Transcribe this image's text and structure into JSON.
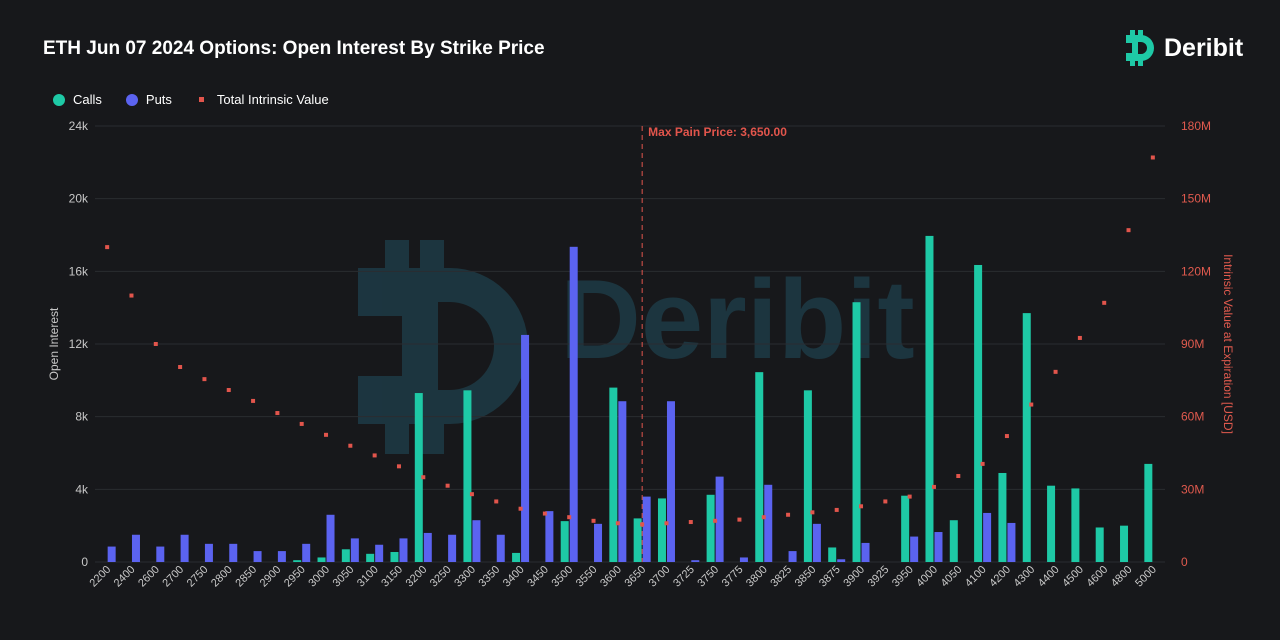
{
  "title": "ETH Jun 07 2024 Options: Open Interest By Strike Price",
  "brand": "Deribit",
  "colors": {
    "calls": "#1ec9a6",
    "puts": "#5b63f0",
    "intrinsic": "#e2554c",
    "grid": "#2a2c30",
    "axis_text": "#c8c8c8",
    "right_axis_text": "#e05a4e",
    "watermark": "#1d3b46"
  },
  "legend": {
    "calls": "Calls",
    "puts": "Puts",
    "intrinsic": "Total Intrinsic Value"
  },
  "chart_data": {
    "type": "bar",
    "xlabel": "",
    "ylabel": "Open Interest",
    "y2label": "Intrinsic Value at Expiration [USD]",
    "ylim": [
      0,
      24000
    ],
    "y2lim": [
      0,
      180000000
    ],
    "y_ticks": [
      "0",
      "4k",
      "8k",
      "12k",
      "16k",
      "20k",
      "24k"
    ],
    "y2_ticks": [
      "0",
      "30M",
      "60M",
      "90M",
      "120M",
      "150M",
      "180M"
    ],
    "grid": true,
    "legend_position": "top-left",
    "annotation": "Max Pain Price: 3,650.00",
    "max_pain_strike": "3650",
    "categories": [
      "2200",
      "2400",
      "2600",
      "2700",
      "2750",
      "2800",
      "2850",
      "2900",
      "2950",
      "3000",
      "3050",
      "3100",
      "3150",
      "3200",
      "3250",
      "3300",
      "3350",
      "3400",
      "3450",
      "3500",
      "3550",
      "3600",
      "3650",
      "3700",
      "3725",
      "3750",
      "3775",
      "3800",
      "3825",
      "3850",
      "3875",
      "3900",
      "3925",
      "3950",
      "4000",
      "4050",
      "4100",
      "4200",
      "4300",
      "4400",
      "4500",
      "4600",
      "4800",
      "5000"
    ],
    "series": [
      {
        "name": "Calls",
        "type": "bar",
        "values": [
          0,
          0,
          0,
          0,
          0,
          0,
          0,
          0,
          100,
          250,
          700,
          450,
          550,
          9300,
          0,
          9450,
          0,
          500,
          0,
          2250,
          0,
          9600,
          2400,
          3500,
          0,
          3700,
          0,
          10450,
          0,
          9450,
          800,
          14300,
          0,
          3650,
          17950,
          2300,
          16350,
          4900,
          13700,
          4200,
          4050,
          1900,
          2000,
          5400
        ]
      },
      {
        "name": "Puts",
        "type": "bar",
        "values": [
          850,
          1500,
          850,
          1500,
          1000,
          1000,
          600,
          600,
          1000,
          2600,
          1300,
          950,
          1300,
          1600,
          1500,
          2300,
          1500,
          12500,
          2800,
          17350,
          2100,
          8850,
          3600,
          8850,
          100,
          4700,
          250,
          4250,
          600,
          2100,
          150,
          1050,
          0,
          1400,
          1650,
          0,
          2700,
          2150,
          0,
          0,
          0,
          0,
          0,
          0
        ]
      },
      {
        "name": "Total Intrinsic Value",
        "type": "scatter",
        "axis": "right",
        "values": [
          130000000,
          110000000,
          90000000,
          80500000,
          75500000,
          71000000,
          66500000,
          61500000,
          57000000,
          52500000,
          48000000,
          44000000,
          39500000,
          35000000,
          31500000,
          28000000,
          25000000,
          22000000,
          20000000,
          18500000,
          17000000,
          16000000,
          15500000,
          16000000,
          16500000,
          17000000,
          17500000,
          18500000,
          19500000,
          20500000,
          21500000,
          23000000,
          25000000,
          27000000,
          31000000,
          35500000,
          40500000,
          52000000,
          65000000,
          78500000,
          92500000,
          107000000,
          137000000,
          167000000
        ]
      }
    ]
  }
}
